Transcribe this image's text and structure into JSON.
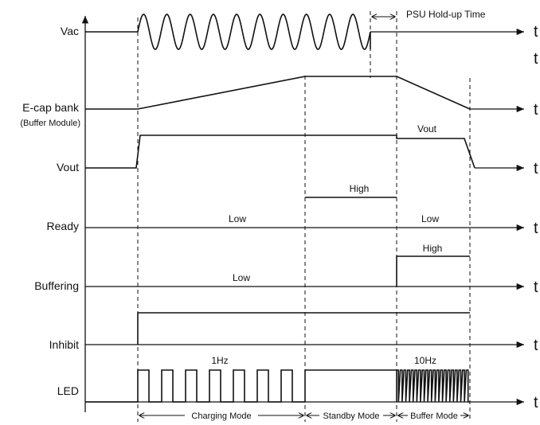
{
  "signals": [
    {
      "id": "vac",
      "label": "Vac"
    },
    {
      "id": "ecap",
      "label": "E-cap bank",
      "sublabel": "(Buffer Module)"
    },
    {
      "id": "vout",
      "label": "Vout"
    },
    {
      "id": "ready",
      "label": "Ready"
    },
    {
      "id": "buffering",
      "label": "Buffering"
    },
    {
      "id": "inhibit",
      "label": "Inhibit"
    },
    {
      "id": "led",
      "label": "LED"
    }
  ],
  "time_axis_label": "t",
  "annotations": {
    "holdup": "PSU Hold-up Time",
    "vout_level": "Vout",
    "ready_high": "High",
    "ready_low_left": "Low",
    "ready_low_right": "Low",
    "buffering_high": "High",
    "buffering_low": "Low",
    "led_slow": "1Hz",
    "led_fast": "10Hz"
  },
  "modes": [
    {
      "id": "charging",
      "label": "Charging Mode"
    },
    {
      "id": "standby",
      "label": "Standby Mode"
    },
    {
      "id": "buffer",
      "label": "Buffer Mode"
    }
  ]
}
